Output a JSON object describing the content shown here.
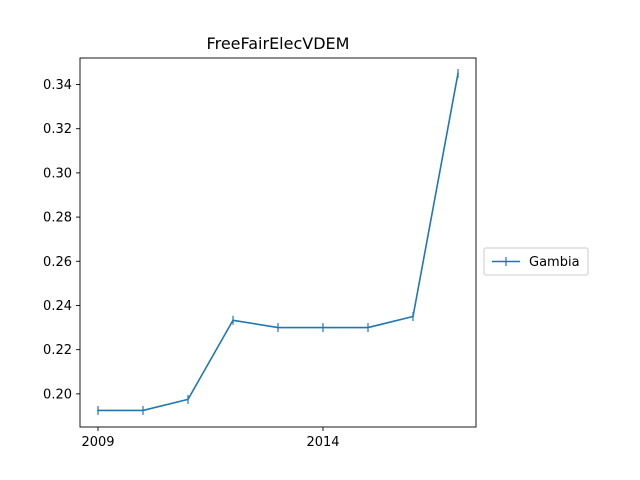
{
  "chart_data": {
    "type": "line",
    "title": "FreeFairElecVDEM",
    "xlabel": "",
    "ylabel": "",
    "x": [
      2009,
      2010,
      2011,
      2012,
      2013,
      2014,
      2015,
      2016,
      2017
    ],
    "x_ticks": [
      2009,
      2014
    ],
    "x_tick_labels": [
      "2009",
      "2014"
    ],
    "xlim": [
      2008.6,
      2017.4
    ],
    "ylim": [
      0.185,
      0.352
    ],
    "y_ticks": [
      0.2,
      0.22,
      0.24,
      0.26,
      0.28,
      0.3,
      0.32,
      0.34
    ],
    "y_tick_labels": [
      "0.20",
      "0.22",
      "0.24",
      "0.26",
      "0.28",
      "0.30",
      "0.32",
      "0.34"
    ],
    "series": [
      {
        "name": "Gambia",
        "color": "#1f77b4",
        "marker": "|",
        "values": [
          0.1925,
          0.1925,
          0.1975,
          0.2333,
          0.23,
          0.23,
          0.23,
          0.235,
          0.345
        ]
      }
    ],
    "grid": false,
    "legend_position": "outside-right"
  }
}
